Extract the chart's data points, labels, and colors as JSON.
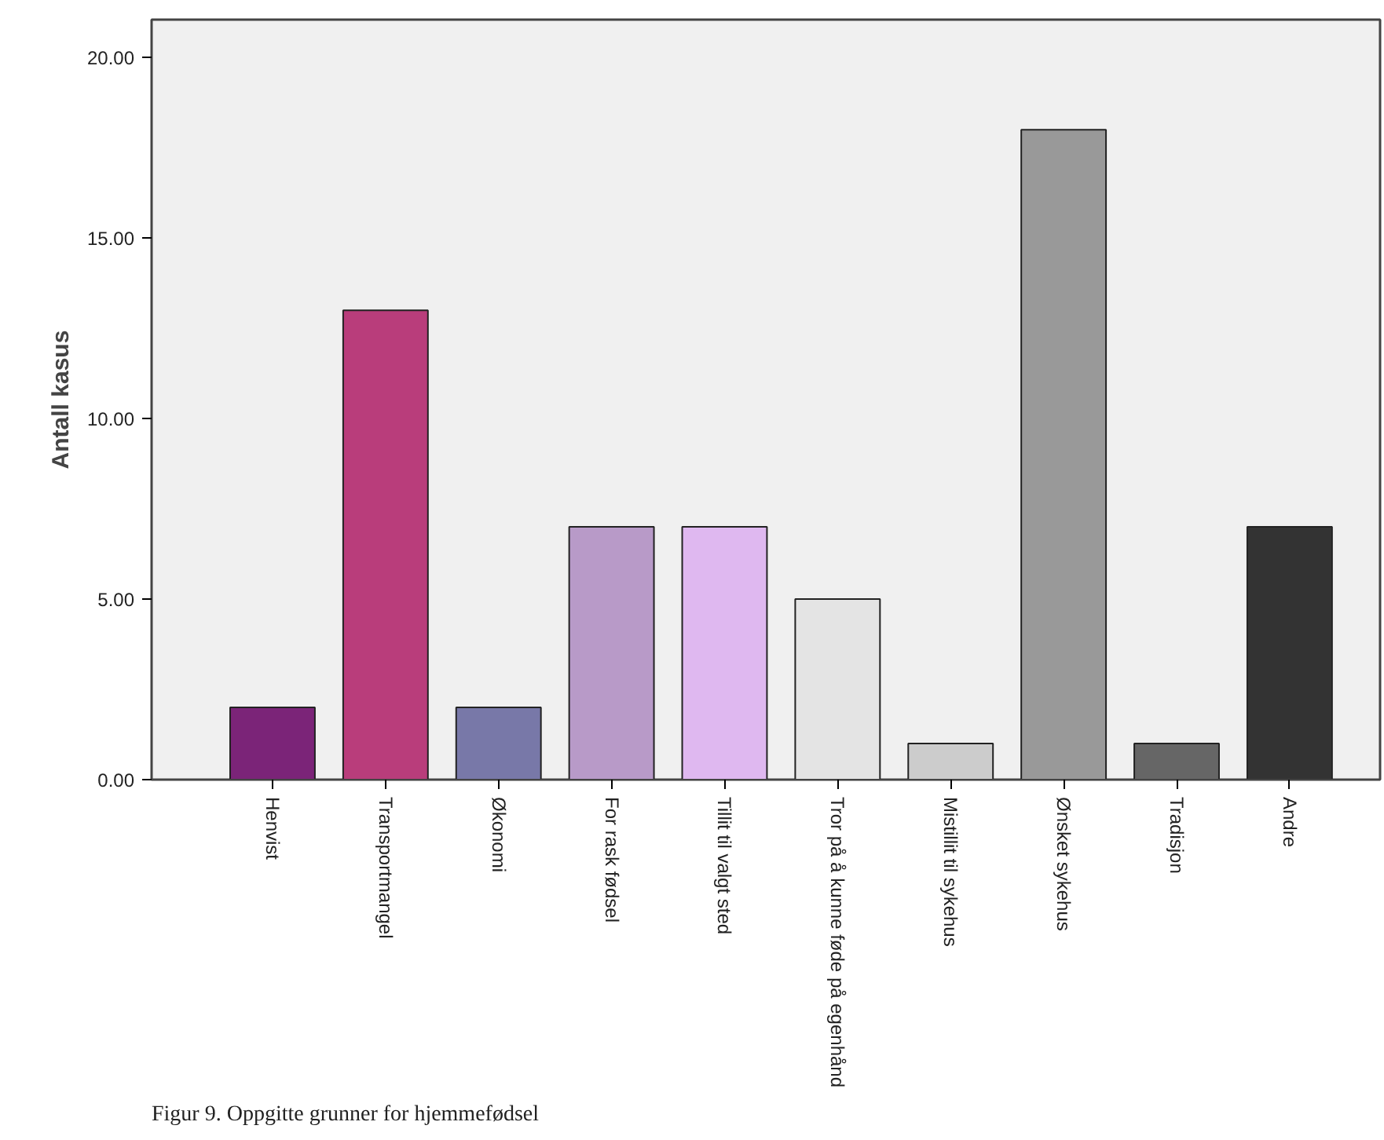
{
  "chart_data": {
    "type": "bar",
    "ylabel": "Antall kasus",
    "categories": [
      "Henvist",
      "Transportmangel",
      "Økonomi",
      "For rask fødsel",
      "Tillit til valgt sted",
      "Tror på å kunne føde på egenhånd",
      "Mistillit til sykehus",
      "Ønsket sykehus",
      "Tradisjon",
      "Andre"
    ],
    "values": [
      2,
      13,
      2,
      7,
      7,
      5,
      1,
      18,
      1,
      7
    ],
    "colors": [
      "#7b2478",
      "#b93d7b",
      "#7878a8",
      "#b89ac8",
      "#dfb8f0",
      "#e4e4e4",
      "#cccccc",
      "#999999",
      "#666666",
      "#333333"
    ],
    "ylim": [
      0,
      21.05
    ],
    "yticks": [
      {
        "value": 0,
        "label": "0.00"
      },
      {
        "value": 5,
        "label": "5.00"
      },
      {
        "value": 10,
        "label": "10.00"
      },
      {
        "value": 15,
        "label": "15.00"
      },
      {
        "value": 20,
        "label": "20.00"
      }
    ],
    "grid": false,
    "annotations": [
      "Figur 9. Oppgitte grunner for hjemmefødsel"
    ]
  }
}
